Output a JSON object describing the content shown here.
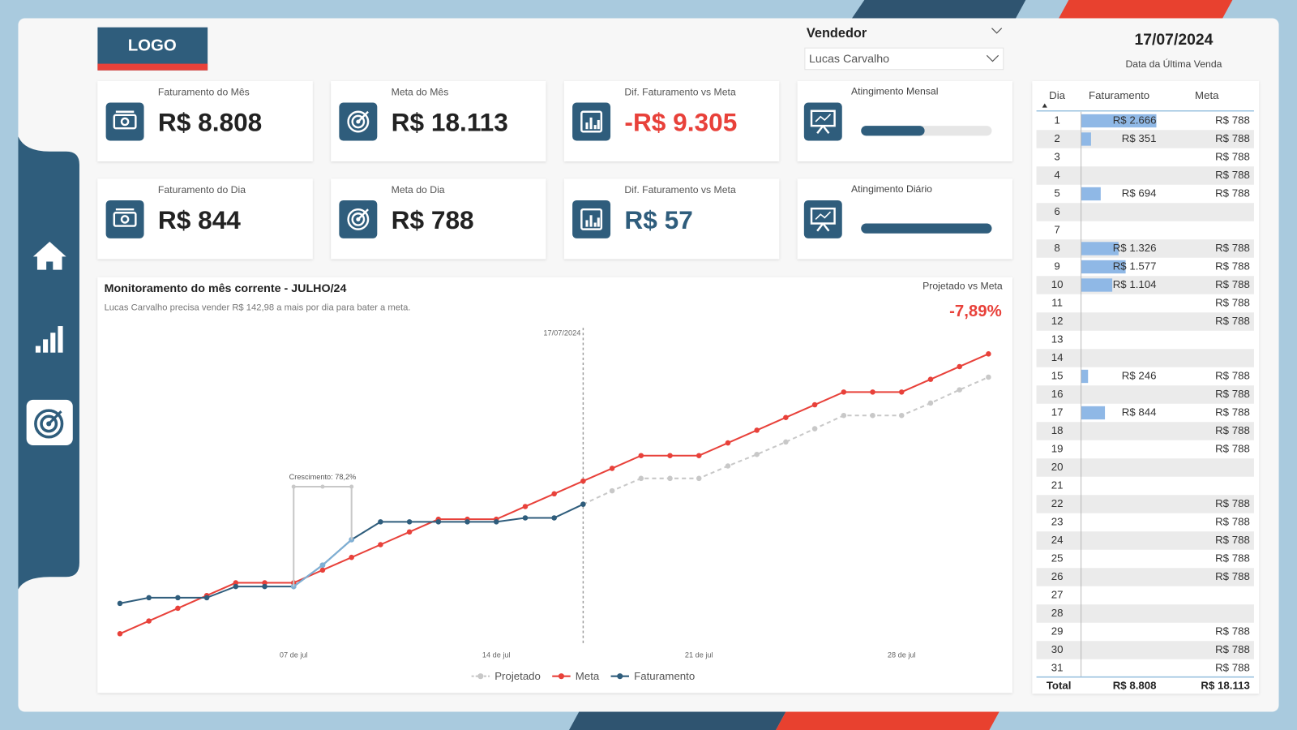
{
  "header": {
    "logo": "LOGO",
    "filter_label": "Vendedor",
    "filter_value": "Lucas Carvalho",
    "date": "17/07/2024",
    "date_caption": "Data da Última Venda"
  },
  "kpis": [
    {
      "title": "Faturamento do Mês",
      "value": "R$ 8.808",
      "color": "#222222"
    },
    {
      "title": "Meta do Mês",
      "value": "R$ 18.113",
      "color": "#222222"
    },
    {
      "title": "Dif. Faturamento vs Meta",
      "value": "-R$ 9.305",
      "color": "#e8413a"
    },
    {
      "title": "Faturamento do Dia",
      "value": "R$ 844",
      "color": "#222222"
    },
    {
      "title": "Meta do Dia",
      "value": "R$ 788",
      "color": "#222222"
    },
    {
      "title": "Dif. Faturamento vs Meta",
      "value": "R$ 57",
      "color": "#2f5d7c"
    }
  ],
  "gauges": [
    {
      "title": "Atingimento Mensal",
      "value": 48.6,
      "lim": [
        0,
        100
      ],
      "color": "#2f5d7c"
    },
    {
      "title": "Atingimento Diário",
      "value": 100,
      "lim": [
        0,
        100
      ],
      "color": "#2f5d7c"
    }
  ],
  "chart_data": {
    "type": "line",
    "title": "Monitoramento do mês corrente - JULHO/24",
    "subtitle": "Lucas Carvalho precisa vender R$ 142,98 a mais por dia para bater a meta.",
    "kpi_label": "Projetado vs Meta",
    "kpi_value": "-7,89%",
    "x": [
      1,
      2,
      3,
      4,
      5,
      6,
      7,
      8,
      9,
      10,
      11,
      12,
      13,
      14,
      15,
      16,
      17,
      18,
      19,
      20,
      21,
      22,
      23,
      24,
      25,
      26,
      27,
      28,
      29,
      30,
      31
    ],
    "xlim": [
      1,
      31
    ],
    "xticks": [
      {
        "value": 7,
        "label": "07 de jul"
      },
      {
        "value": 14,
        "label": "14 de jul"
      },
      {
        "value": 21,
        "label": "21 de jul"
      },
      {
        "value": 28,
        "label": "28 de jul"
      }
    ],
    "ylim": [
      0,
      20000
    ],
    "grid": false,
    "series": [
      {
        "name": "Projetado",
        "color": "#c8c8c8",
        "dashed": true,
        "values": [
          null,
          null,
          null,
          null,
          null,
          null,
          null,
          null,
          null,
          null,
          null,
          null,
          null,
          null,
          null,
          null,
          8808,
          9641,
          10410,
          10410,
          10410,
          11179,
          11897,
          12667,
          13487,
          14308,
          14308,
          14308,
          15077,
          15897,
          16684
        ]
      },
      {
        "name": "Meta",
        "color": "#e8413a",
        "dashed": false,
        "values": [
          788,
          1576,
          2364,
          3152,
          3940,
          3940,
          3940,
          4728,
          5516,
          6304,
          7092,
          7880,
          7880,
          7880,
          8668,
          9456,
          10244,
          11032,
          11820,
          11820,
          11820,
          12608,
          13396,
          14184,
          14972,
          15760,
          15760,
          15760,
          16548,
          17336,
          18124
        ]
      },
      {
        "name": "Faturamento",
        "color": "#2f5d7c",
        "dashed": false,
        "highlight_color": "#7fb0d6",
        "values": [
          2666,
          3017,
          3017,
          3017,
          3711,
          3711,
          3711,
          5037,
          6614,
          7718,
          7718,
          7718,
          7718,
          7718,
          7964,
          7964,
          8808,
          null,
          null,
          null,
          null,
          null,
          null,
          null,
          null,
          null,
          null,
          null,
          null,
          null,
          null
        ]
      }
    ],
    "reference_line": {
      "x": 17,
      "label": "17/07/2024"
    },
    "annotation": {
      "text": "Crescimento: 78,2%",
      "from": 7,
      "to": 9
    }
  },
  "table": {
    "columns": [
      "Dia",
      "Faturamento",
      "Meta"
    ],
    "bar_color": "#8fb8e6",
    "rows": [
      {
        "dia": 1,
        "faturamento": {
          "value": 2666,
          "label": "R$ 2.666"
        },
        "meta": "R$ 788"
      },
      {
        "dia": 2,
        "faturamento": {
          "value": 351,
          "label": "R$ 351"
        },
        "meta": "R$ 788"
      },
      {
        "dia": 3,
        "faturamento": null,
        "meta": "R$ 788"
      },
      {
        "dia": 4,
        "faturamento": null,
        "meta": "R$ 788"
      },
      {
        "dia": 5,
        "faturamento": {
          "value": 694,
          "label": "R$ 694"
        },
        "meta": "R$ 788"
      },
      {
        "dia": 6,
        "faturamento": null,
        "meta": null
      },
      {
        "dia": 7,
        "faturamento": null,
        "meta": null
      },
      {
        "dia": 8,
        "faturamento": {
          "value": 1326,
          "label": "R$ 1.326"
        },
        "meta": "R$ 788"
      },
      {
        "dia": 9,
        "faturamento": {
          "value": 1577,
          "label": "R$ 1.577"
        },
        "meta": "R$ 788"
      },
      {
        "dia": 10,
        "faturamento": {
          "value": 1104,
          "label": "R$ 1.104"
        },
        "meta": "R$ 788"
      },
      {
        "dia": 11,
        "faturamento": null,
        "meta": "R$ 788"
      },
      {
        "dia": 12,
        "faturamento": null,
        "meta": "R$ 788"
      },
      {
        "dia": 13,
        "faturamento": null,
        "meta": null
      },
      {
        "dia": 14,
        "faturamento": null,
        "meta": null
      },
      {
        "dia": 15,
        "faturamento": {
          "value": 246,
          "label": "R$ 246"
        },
        "meta": "R$ 788"
      },
      {
        "dia": 16,
        "faturamento": null,
        "meta": "R$ 788"
      },
      {
        "dia": 17,
        "faturamento": {
          "value": 844,
          "label": "R$ 844"
        },
        "meta": "R$ 788"
      },
      {
        "dia": 18,
        "faturamento": null,
        "meta": "R$ 788"
      },
      {
        "dia": 19,
        "faturamento": null,
        "meta": "R$ 788"
      },
      {
        "dia": 20,
        "faturamento": null,
        "meta": null
      },
      {
        "dia": 21,
        "faturamento": null,
        "meta": null
      },
      {
        "dia": 22,
        "faturamento": null,
        "meta": "R$ 788"
      },
      {
        "dia": 23,
        "faturamento": null,
        "meta": "R$ 788"
      },
      {
        "dia": 24,
        "faturamento": null,
        "meta": "R$ 788"
      },
      {
        "dia": 25,
        "faturamento": null,
        "meta": "R$ 788"
      },
      {
        "dia": 26,
        "faturamento": null,
        "meta": "R$ 788"
      },
      {
        "dia": 27,
        "faturamento": null,
        "meta": null
      },
      {
        "dia": 28,
        "faturamento": null,
        "meta": null
      },
      {
        "dia": 29,
        "faturamento": null,
        "meta": "R$ 788"
      },
      {
        "dia": 30,
        "faturamento": null,
        "meta": "R$ 788"
      },
      {
        "dia": 31,
        "faturamento": null,
        "meta": "R$ 788"
      }
    ],
    "total": [
      "Total",
      "R$ 8.808",
      "R$ 18.113"
    ]
  }
}
